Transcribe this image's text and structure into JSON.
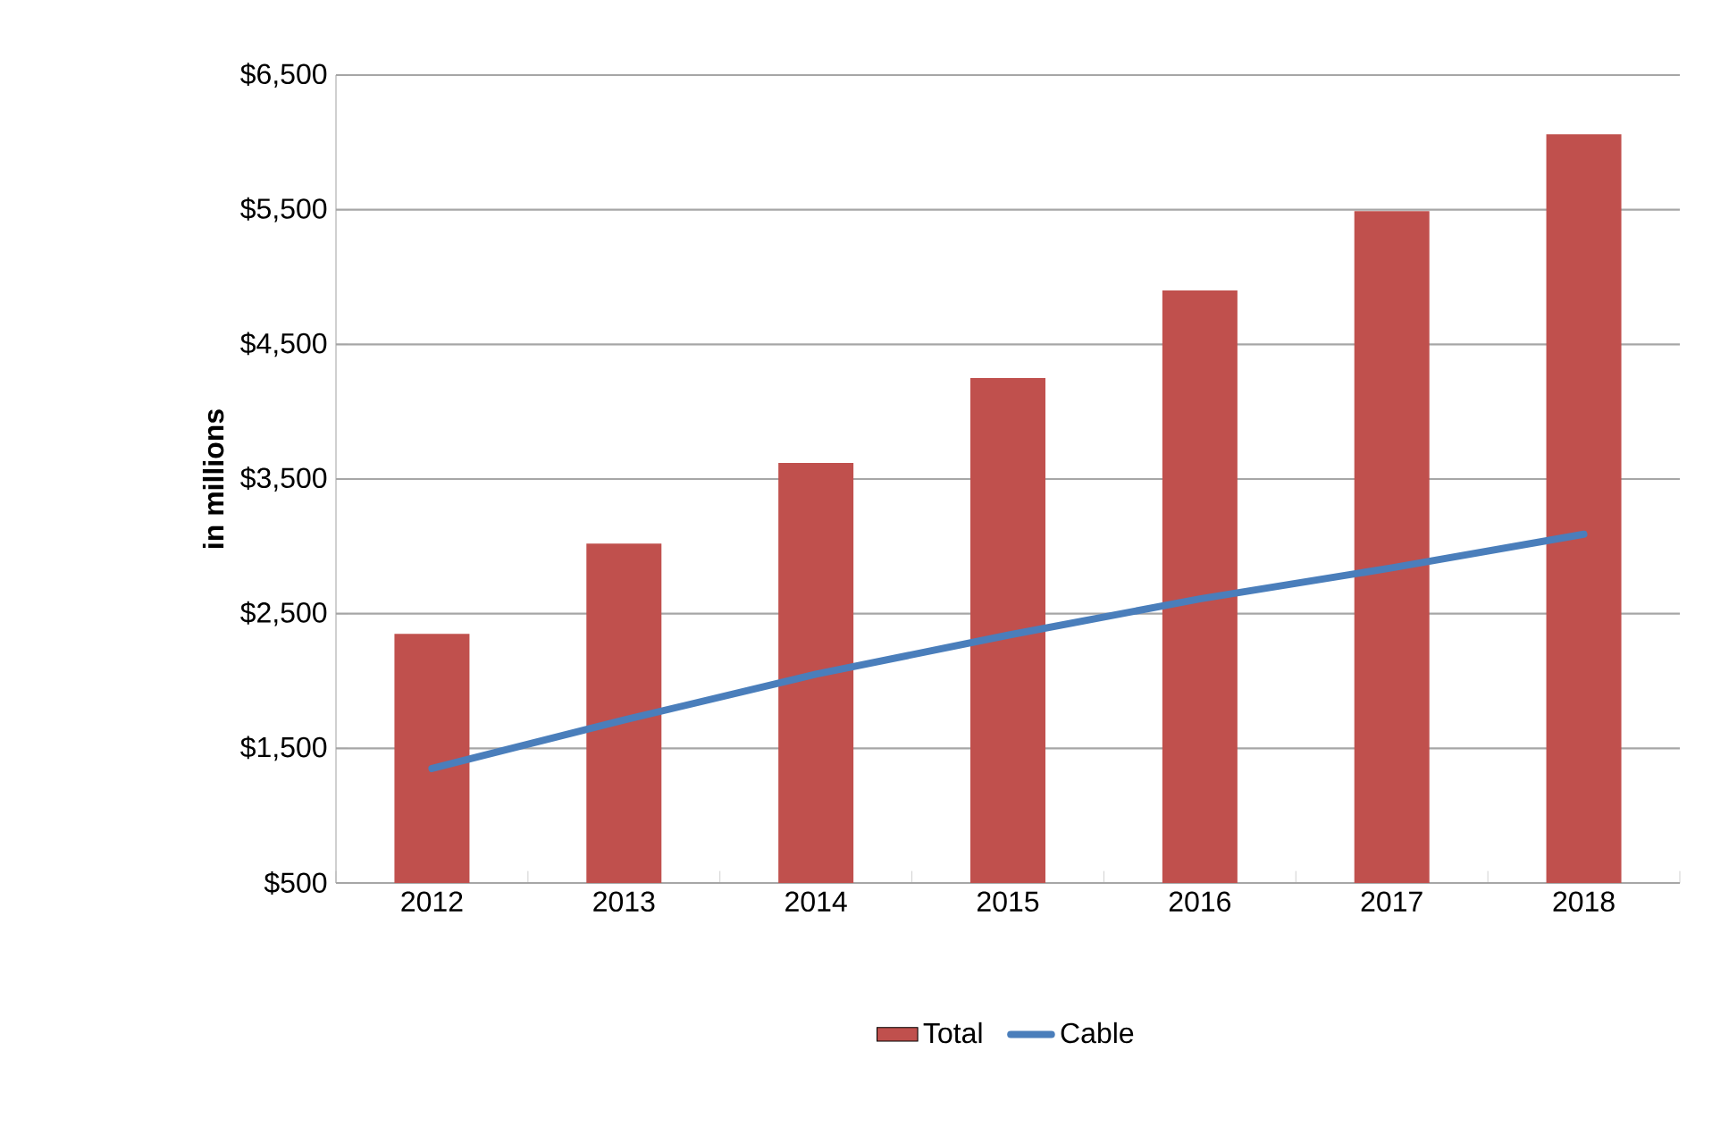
{
  "chart_data": {
    "type": "bar",
    "ylabel": "in millions",
    "categories": [
      "2012",
      "2013",
      "2014",
      "2015",
      "2016",
      "2017",
      "2018"
    ],
    "series": [
      {
        "name": "Total",
        "color": "#c0504d",
        "values": [
          2350,
          3020,
          3620,
          4250,
          4900,
          5490,
          6060
        ]
      },
      {
        "name": "Cable",
        "type": "line",
        "color": "#4a7ebb",
        "values": [
          1350,
          1710,
          2050,
          2340,
          2610,
          2840,
          3090
        ]
      }
    ],
    "ylim": [
      500,
      6500
    ],
    "yticks": [
      {
        "value": 500,
        "label": "$500"
      },
      {
        "value": 1500,
        "label": "$1,500"
      },
      {
        "value": 2500,
        "label": "$2,500"
      },
      {
        "value": 3500,
        "label": "$3,500"
      },
      {
        "value": 4500,
        "label": "$4,500"
      },
      {
        "value": 5500,
        "label": "$5,500"
      },
      {
        "value": 6500,
        "label": "$6,500"
      }
    ],
    "grid": "y",
    "legend": "bottom"
  }
}
